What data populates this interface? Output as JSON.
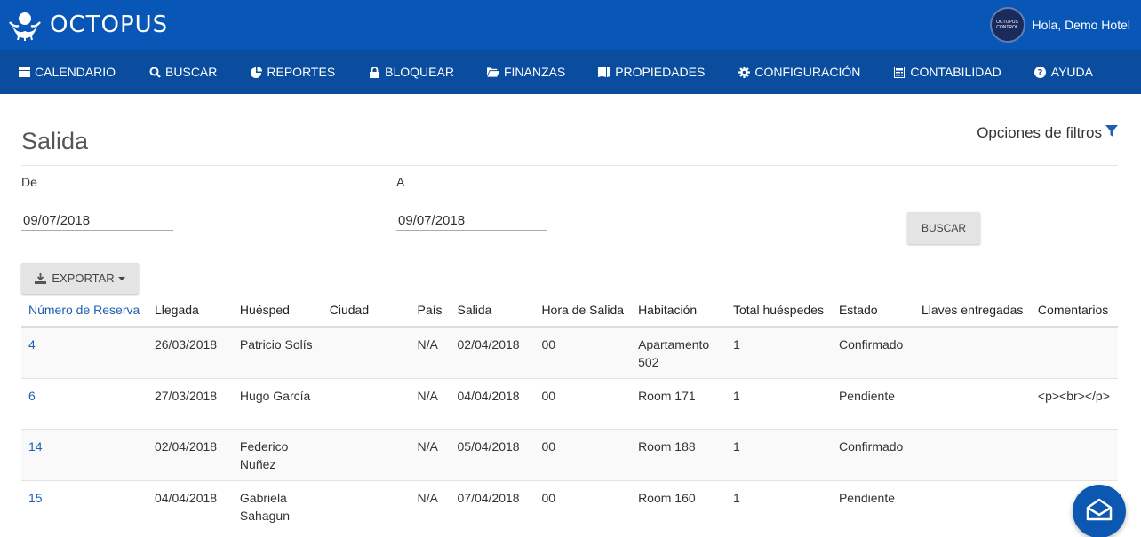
{
  "header": {
    "brand": "OCTOPUS",
    "greeting": "Hola, Demo Hotel",
    "avatar_text": "OCTOPUS CONTROL"
  },
  "nav": {
    "items": [
      {
        "label": "CALENDARIO",
        "icon": "calendar-icon"
      },
      {
        "label": "BUSCAR",
        "icon": "search-icon"
      },
      {
        "label": "REPORTES",
        "icon": "pie-chart-icon"
      },
      {
        "label": "BLOQUEAR",
        "icon": "lock-icon"
      },
      {
        "label": "FINANZAS",
        "icon": "folder-open-icon"
      },
      {
        "label": "PROPIEDADES",
        "icon": "map-icon"
      },
      {
        "label": "CONFIGURACIÓN",
        "icon": "gear-icon"
      },
      {
        "label": "CONTABILIDAD",
        "icon": "calculator-icon"
      },
      {
        "label": "AYUDA",
        "icon": "question-circle-icon"
      }
    ]
  },
  "page": {
    "title": "Salida",
    "filter_options": "Opciones de filtros"
  },
  "filters": {
    "from_label": "De",
    "from_value": "09/07/2018",
    "to_label": "A",
    "to_value": "09/07/2018",
    "search_button": "BUSCAR",
    "export_button": "EXPORTAR"
  },
  "table": {
    "columns": [
      "Número de Reserva",
      "Llegada",
      "Huésped",
      "Ciudad",
      "País",
      "Salida",
      "Hora de Salida",
      "Habitación",
      "Total huéspedes",
      "Estado",
      "Llaves entregadas",
      "Comentarios"
    ],
    "rows": [
      {
        "reserva": "4",
        "llegada": "26/03/2018",
        "huesped": "Patricio Solís",
        "ciudad": "",
        "pais": "N/A",
        "salida": "02/04/2018",
        "hora": "00",
        "habitacion": "Apartamento 502",
        "total": "1",
        "estado": "Confirmado",
        "llaves": "",
        "comentarios": ""
      },
      {
        "reserva": "6",
        "llegada": "27/03/2018",
        "huesped": "Hugo García",
        "ciudad": "",
        "pais": "N/A",
        "salida": "04/04/2018",
        "hora": "00",
        "habitacion": "Room 171",
        "total": "1",
        "estado": "Pendiente",
        "llaves": "",
        "comentarios": "<p><br></p>"
      },
      {
        "reserva": "14",
        "llegada": "02/04/2018",
        "huesped": "Federico Nuñez",
        "ciudad": "",
        "pais": "N/A",
        "salida": "05/04/2018",
        "hora": "00",
        "habitacion": "Room 188",
        "total": "1",
        "estado": "Confirmado",
        "llaves": "",
        "comentarios": ""
      },
      {
        "reserva": "15",
        "llegada": "04/04/2018",
        "huesped": "Gabriela Sahagun",
        "ciudad": "",
        "pais": "N/A",
        "salida": "07/04/2018",
        "hora": "00",
        "habitacion": "Room 160",
        "total": "1",
        "estado": "Pendiente",
        "llaves": "",
        "comentarios": ""
      }
    ]
  },
  "colors": {
    "topbar": "#0857b7",
    "navbar": "#0a4c9e",
    "link": "#1e5fb4"
  }
}
